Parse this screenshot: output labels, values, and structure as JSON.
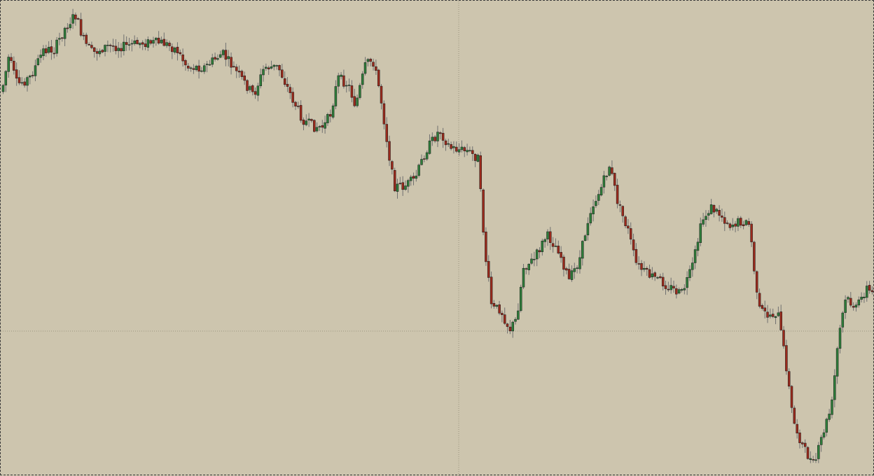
{
  "colors": {
    "background": "#cdc5ae",
    "bull_body": "#2e7d3a",
    "bear_body": "#9b2a1c",
    "candle_outline": "#1a1a1a",
    "wick": "#707070",
    "grid": "#9c9580",
    "frame": "#3a3a3a"
  },
  "chart_data": {
    "type": "candlestick",
    "title": "",
    "xlabel": "",
    "ylabel": "",
    "ylim": [
      0,
      679
    ],
    "grid": false,
    "crosshair": {
      "x_index": 200,
      "y_value": 207
    },
    "closes": [
      548,
      568,
      523,
      516,
      570,
      528,
      530,
      538,
      552,
      559,
      536,
      550,
      546,
      558,
      568,
      581,
      564,
      542,
      582,
      598,
      609,
      610,
      630,
      642,
      656,
      652,
      610,
      622,
      595,
      597,
      608,
      594,
      589,
      610,
      613,
      603,
      585,
      601,
      609,
      609,
      607,
      611,
      602,
      605,
      615,
      605,
      603,
      612,
      611,
      607,
      602,
      609,
      598,
      617,
      613,
      605,
      611,
      607,
      607,
      621,
      618,
      632,
      636,
      601,
      632,
      626,
      615,
      619,
      597,
      597,
      608,
      610,
      577,
      598,
      603,
      612,
      602,
      586,
      584,
      593,
      594,
      593,
      590,
      593,
      584,
      600,
      612,
      588,
      576,
      578,
      604,
      627,
      636,
      569,
      627,
      589,
      585,
      600,
      590,
      571,
      561,
      566,
      590,
      576,
      577,
      566,
      594,
      583,
      562,
      524,
      544,
      537,
      541,
      559,
      573,
      602,
      597,
      599,
      630,
      564,
      563,
      581,
      591,
      587,
      592,
      615,
      557,
      626,
      600,
      606,
      572,
      602,
      588,
      572,
      517,
      629,
      573,
      642,
      627,
      608,
      631,
      630,
      603,
      559,
      586,
      580,
      533,
      528,
      556,
      570,
      594,
      553,
      610,
      565,
      515,
      579,
      614,
      562,
      658,
      648,
      606,
      595,
      632,
      649,
      582,
      605,
      567,
      527,
      653,
      614,
      642,
      655,
      624,
      656,
      625,
      650,
      603,
      562,
      545,
      526,
      600,
      608,
      493,
      594,
      622,
      661,
      610,
      547,
      598,
      574,
      584,
      571,
      578,
      561,
      541,
      582,
      613,
      598,
      589,
      576,
      586,
      629,
      635,
      606,
      622,
      600,
      609,
      578,
      552,
      541,
      536,
      526,
      554,
      550,
      536,
      531,
      564,
      539,
      515,
      557,
      555,
      534,
      604,
      532,
      604,
      594,
      525,
      531,
      524,
      499,
      532,
      500,
      539,
      518,
      510,
      507,
      523,
      521,
      505,
      467,
      480,
      523,
      516,
      565,
      578,
      567,
      543,
      563,
      580,
      517,
      575,
      519,
      516,
      524,
      539,
      482,
      471,
      548,
      430,
      440,
      411,
      492,
      406,
      451,
      488,
      451,
      428,
      498,
      403,
      452,
      451,
      419,
      440,
      471,
      492,
      501,
      512,
      466,
      504,
      468,
      485,
      475,
      440,
      412,
      441,
      380,
      514,
      531,
      465,
      442,
      466,
      445,
      408,
      378,
      444,
      449,
      398,
      375,
      401,
      413,
      411,
      364,
      451,
      418,
      520,
      556,
      547,
      512,
      480,
      441,
      417,
      402,
      405,
      439,
      450,
      393,
      313,
      339,
      372,
      347,
      317,
      348,
      375,
      390,
      426,
      433,
      410,
      376,
      308,
      434,
      447,
      431,
      390,
      374,
      422,
      377,
      362,
      338,
      319,
      355,
      369,
      315,
      336,
      349,
      327,
      382,
      400,
      387,
      358,
      398,
      410,
      381,
      360,
      365,
      382,
      376,
      348,
      364,
      392,
      375,
      407,
      354,
      443,
      418,
      451,
      453,
      455,
      471,
      447,
      481,
      488,
      399,
      516,
      420,
      412,
      406,
      400,
      463,
      471,
      460,
      391,
      481,
      396,
      418,
      437,
      414,
      489,
      377,
      397,
      366,
      419,
      406,
      433,
      409,
      428,
      365,
      435,
      424,
      420,
      383,
      426,
      437,
      343,
      320,
      312,
      329,
      409,
      388,
      356,
      394,
      401,
      356,
      399,
      340,
      378,
      356,
      375,
      361,
      387,
      399,
      411,
      408,
      426,
      431,
      407,
      377,
      355,
      428,
      356,
      398,
      424,
      321,
      353,
      324,
      361,
      406,
      368,
      380,
      438,
      315,
      398,
      362,
      442,
      342,
      392,
      392,
      366,
      373,
      410,
      355,
      377,
      386,
      378,
      353,
      327,
      358,
      398,
      391,
      432,
      404,
      376,
      381,
      396,
      362,
      368,
      420,
      395,
      358,
      383,
      374,
      411,
      369,
      386,
      421,
      443,
      367,
      373,
      405,
      347,
      346,
      286,
      324,
      328,
      286,
      294,
      250,
      234,
      248,
      243,
      250,
      235,
      201,
      233,
      267,
      221,
      254,
      201,
      227,
      182,
      232,
      212,
      200,
      213,
      172,
      179,
      155,
      174,
      114,
      201,
      171,
      142,
      137,
      159,
      135,
      127,
      96,
      136,
      75,
      64,
      71,
      72,
      110,
      71,
      112,
      64,
      39,
      58,
      67,
      26,
      17,
      53,
      49,
      26,
      45,
      17,
      23,
      30,
      19,
      32,
      17,
      37,
      16,
      45,
      66,
      32,
      66,
      74,
      126,
      91,
      135,
      132,
      142,
      132,
      140,
      154,
      156
    ],
    "opens_note": "",
    "price_scale": "pixel-space"
  }
}
